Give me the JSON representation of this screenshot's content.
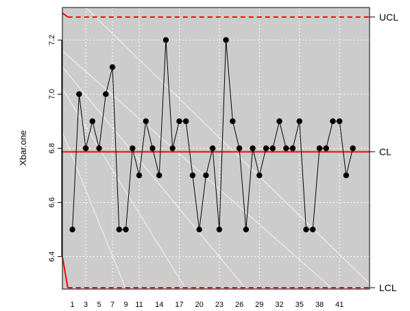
{
  "chart_data": {
    "type": "line",
    "ylabel": "Xbar.one",
    "xlabel": "",
    "ylim": [
      6.28,
      7.32
    ],
    "xlim": [
      -0.5,
      45.5
    ],
    "x_tick_labels": [
      "1",
      "3",
      "5",
      "7",
      "9",
      "11",
      "14",
      "17",
      "20",
      "23",
      "26",
      "29",
      "32",
      "35",
      "38",
      "41"
    ],
    "x_tick_positions": [
      1,
      3,
      5,
      7,
      9,
      11,
      14,
      17,
      20,
      23,
      26,
      29,
      32,
      35,
      38,
      41
    ],
    "y_ticks": [
      6.4,
      6.6,
      6.8,
      7.0,
      7.2
    ],
    "y_tick_labels": [
      "6.4",
      "6.6",
      "6.8",
      "7.0",
      "7.2"
    ],
    "grid": true,
    "control_limits": {
      "UCL": {
        "label": "UCL",
        "value": 7.285
      },
      "CL": {
        "label": "CL",
        "value": 6.787
      },
      "LCL": {
        "label": "LCL",
        "value": 6.285
      }
    },
    "series": [
      {
        "x": [
          1,
          2,
          3,
          4,
          5,
          6,
          7,
          8,
          9,
          10,
          11,
          12,
          13,
          14,
          15,
          16,
          17,
          18,
          19,
          20,
          21,
          22,
          23,
          24,
          25,
          26,
          27,
          28,
          29,
          30,
          31,
          32,
          33,
          34,
          35,
          36,
          37,
          38,
          39,
          40,
          41,
          42,
          43
        ],
        "values": [
          6.5,
          7.0,
          6.8,
          6.9,
          6.8,
          7.0,
          7.1,
          6.5,
          6.5,
          6.8,
          6.7,
          6.9,
          6.8,
          6.7,
          7.2,
          6.8,
          6.9,
          6.9,
          6.7,
          6.5,
          6.7,
          6.8,
          6.5,
          7.2,
          6.9,
          6.8,
          6.5,
          6.8,
          6.7,
          6.8,
          6.8,
          6.9,
          6.8,
          6.8,
          6.9,
          6.5,
          6.5,
          6.8,
          6.8,
          6.9,
          6.9,
          6.7,
          6.8
        ]
      }
    ],
    "colors": {
      "panel_background": "#cccccc",
      "grid": "#ffffff",
      "limit_line": "#ff0000",
      "data_line": "#000000",
      "points": "#000000"
    }
  }
}
